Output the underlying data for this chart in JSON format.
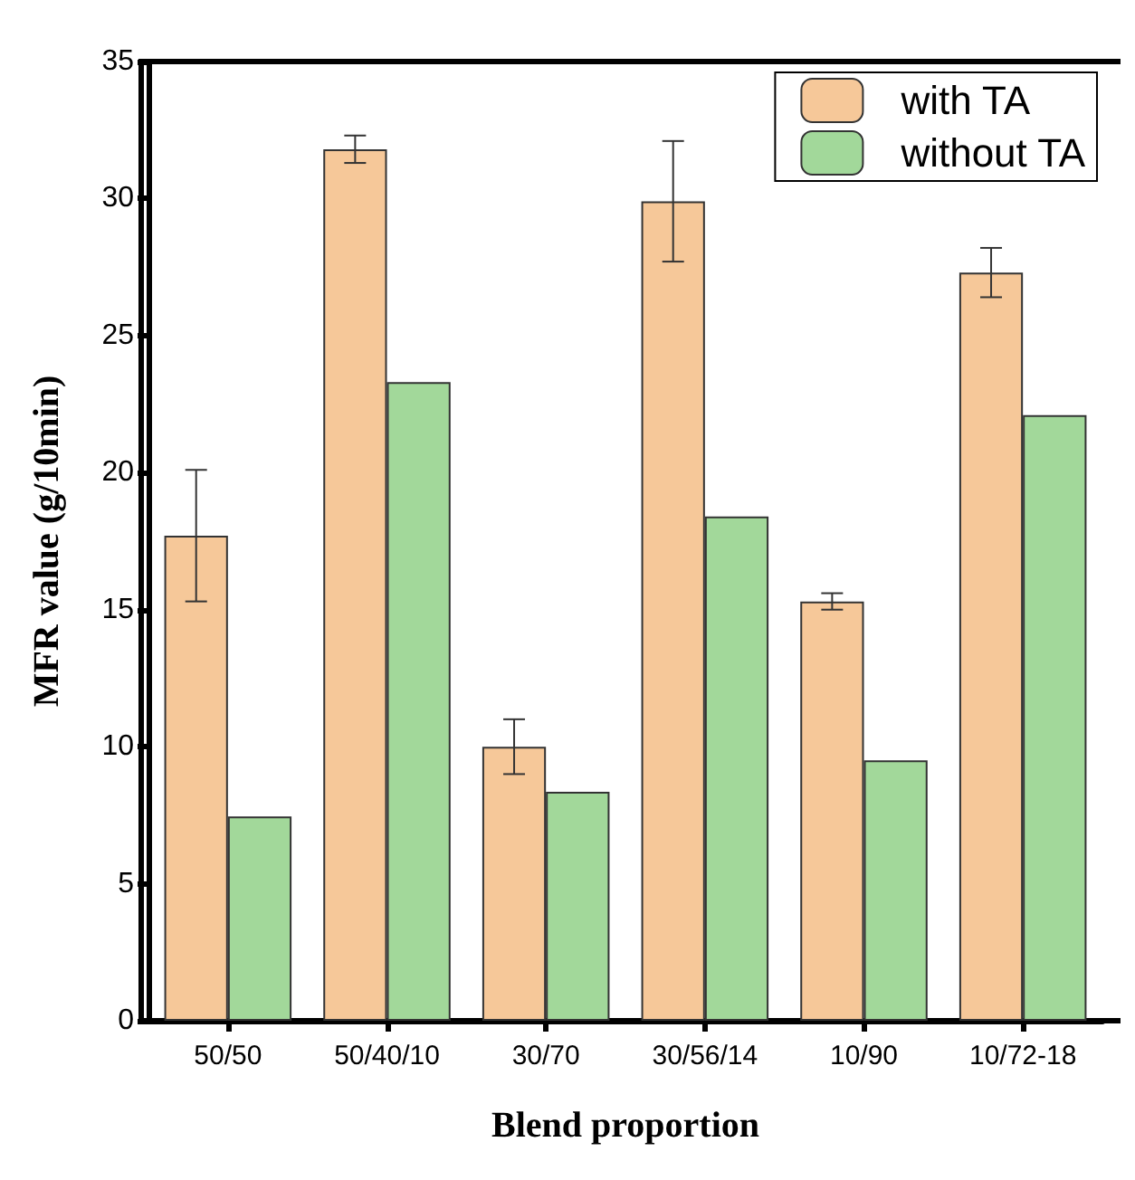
{
  "chart_data": {
    "type": "bar",
    "xlabel": "Blend proportion",
    "ylabel": "MFR value (g/10min)",
    "categories": [
      "50/50",
      "50/40/10",
      "30/70",
      "30/56/14",
      "10/90",
      "10/72-18"
    ],
    "series": [
      {
        "name": "with TA",
        "color": "#f6c899",
        "values": [
          17.7,
          31.8,
          10.0,
          29.9,
          15.3,
          27.3
        ],
        "errors": [
          2.4,
          0.5,
          1.0,
          2.2,
          0.3,
          0.9
        ]
      },
      {
        "name": "without TA",
        "color": "#a2d89a",
        "values": [
          7.45,
          23.3,
          8.35,
          18.4,
          9.5,
          22.1
        ]
      }
    ],
    "ylim": [
      0,
      35
    ],
    "yticks": [
      0,
      5,
      10,
      15,
      20,
      25,
      30,
      35
    ],
    "grid": false,
    "legend": "top right"
  }
}
